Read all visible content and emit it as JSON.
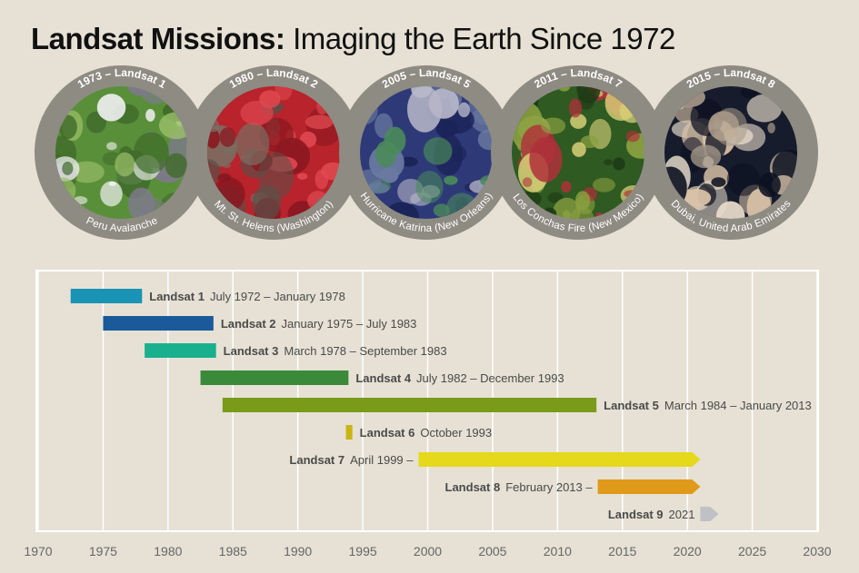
{
  "title": {
    "bold": "Landsat Missions:",
    "rest": "Imaging the Earth Since 1972"
  },
  "missions_images": [
    {
      "caption_top": "1973 – Landsat 1",
      "caption_bottom": "Peru Avalanche",
      "palette": [
        "#5a8f3a",
        "#9cc06a",
        "#7d7a8a",
        "#f2f2f4",
        "#3f6b2a"
      ]
    },
    {
      "caption_top": "1980 – Landsat 2",
      "caption_bottom": "Mt. St. Helens (Washington)",
      "palette": [
        "#b8232c",
        "#7a6e62",
        "#e04850",
        "#5a5048",
        "#8a1820"
      ]
    },
    {
      "caption_top": "2005 – Landsat 5",
      "caption_bottom": "Hurricane Katrina (New Orleans)",
      "palette": [
        "#2e3a78",
        "#6a7aa0",
        "#b7b7c8",
        "#4a8a5a",
        "#1b2458"
      ]
    },
    {
      "caption_top": "2011 – Landsat 7",
      "caption_bottom": "Los Conchas Fire (New Mexico)",
      "palette": [
        "#2f5a22",
        "#8aa040",
        "#b0303a",
        "#d8d078",
        "#1e3a16"
      ]
    },
    {
      "caption_top": "2015 – Landsat 8",
      "caption_bottom": "Dubai, United Arab Emirates",
      "palette": [
        "#161c2c",
        "#d9c2a8",
        "#a89a8a",
        "#e8dccb",
        "#0c1120"
      ]
    }
  ],
  "chart_data": {
    "type": "bar",
    "subtype": "timeline",
    "x_ticks": [
      1970,
      1975,
      1980,
      1985,
      1990,
      1995,
      2000,
      2005,
      2010,
      2015,
      2020,
      2025,
      2030
    ],
    "xlim": [
      1970,
      2030
    ],
    "grid": true,
    "series": [
      {
        "name": "Landsat 1",
        "dates": "July 1972 – January 1978",
        "start": 1972.5,
        "end": 1978.0,
        "ongoing": false,
        "color": "#1a93b5",
        "label_side": "right"
      },
      {
        "name": "Landsat 2",
        "dates": "January 1975 – July 1983",
        "start": 1975.0,
        "end": 1983.5,
        "ongoing": false,
        "color": "#1a5a9a",
        "label_side": "right"
      },
      {
        "name": "Landsat 3",
        "dates": "March 1978 – September 1983",
        "start": 1978.2,
        "end": 1983.7,
        "ongoing": false,
        "color": "#1ab08e",
        "label_side": "right"
      },
      {
        "name": "Landsat 4",
        "dates": "July 1982 – December 1993",
        "start": 1982.5,
        "end": 1993.9,
        "ongoing": false,
        "color": "#3a8a3a",
        "label_side": "right"
      },
      {
        "name": "Landsat 5",
        "dates": "March 1984 – January 2013",
        "start": 1984.2,
        "end": 2013.0,
        "ongoing": false,
        "color": "#7a9a1a",
        "label_side": "right"
      },
      {
        "name": "Landsat 6",
        "dates": "October 1993",
        "start": 1993.7,
        "end": 1994.2,
        "ongoing": false,
        "color": "#c9b414",
        "label_side": "right"
      },
      {
        "name": "Landsat 7",
        "dates": "April 1999 –",
        "start": 1999.3,
        "end": 2021.0,
        "ongoing": true,
        "color": "#e6d81a",
        "label_side": "left"
      },
      {
        "name": "Landsat 8",
        "dates": "February 2013 –",
        "start": 2013.1,
        "end": 2021.0,
        "ongoing": true,
        "color": "#e09a1a",
        "label_side": "left"
      },
      {
        "name": "Landsat 9",
        "dates": "2021",
        "start": 2021.0,
        "end": 2022.4,
        "ongoing": true,
        "color": "#bfc1c4",
        "label_side": "left"
      }
    ]
  }
}
